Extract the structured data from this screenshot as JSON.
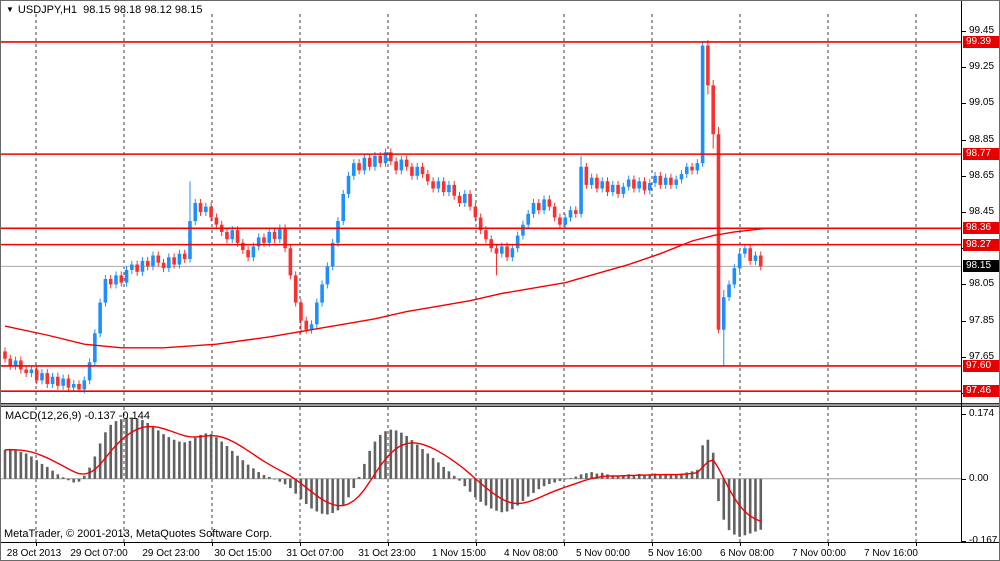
{
  "title": {
    "symbol_period": "USDJPY,H1",
    "ohlc_text": "98.15 98.18 98.12 98.15",
    "collapse_icon": "▼"
  },
  "macd_panel": {
    "label": "MACD(12,26,9)",
    "main_value": "-0.137",
    "signal_value": "-0.144"
  },
  "footer": {
    "copyright": "MetaTrader, © 2001-2013, MetaQuotes Software Corp."
  },
  "colors": {
    "bull": "#1E8FFF",
    "bear": "#FA3030",
    "sr_line": "#F40000",
    "ma_line": "#F40000",
    "hist": "#616161",
    "signal": "#F40000",
    "grid": "#3F3F3F",
    "current_line": "#ABABAB",
    "badge_red": "#E60000",
    "badge_black": "#000000",
    "zero_line": "#9a9a9a"
  },
  "chart_data": {
    "type": "candlestick",
    "symbol": "USDJPY",
    "timeframe": "H1",
    "current_bar": {
      "open": 98.15,
      "high": 98.18,
      "low": 98.12,
      "close": 98.15
    },
    "y_axis": {
      "max": 99.616,
      "min": 97.395,
      "ticks": [
        99.45,
        99.25,
        99.05,
        98.85,
        98.65,
        98.45,
        98.25,
        98.05,
        97.85,
        97.65,
        97.45
      ]
    },
    "macd_axis": {
      "max": 0.193,
      "min": -0.17,
      "ticks": [
        {
          "v": 0.174,
          "label": "0.174"
        },
        {
          "v": 0.0,
          "label": "0.00"
        },
        {
          "v": -0.167,
          "label": "-0.167"
        }
      ]
    },
    "x_labels": [
      "28 Oct 2013",
      "29 Oct 07:00",
      "29 Oct 23:00",
      "30 Oct 15:00",
      "31 Oct 07:00",
      "31 Oct 23:00",
      "1 Nov 15:00",
      "4 Nov 08:00",
      "5 Nov 00:00",
      "5 Nov 16:00",
      "6 Nov 08:00",
      "7 Nov 00:00",
      "7 Nov 16:00"
    ],
    "bars_per_gridline": 16,
    "hlines": [
      99.39,
      98.77,
      98.36,
      98.27,
      97.6,
      97.46
    ],
    "current_price": 98.15,
    "first_open": 97.68,
    "wick": 0.022,
    "closes": [
      97.64,
      97.6,
      97.63,
      97.58,
      97.56,
      97.58,
      97.52,
      97.56,
      97.5,
      97.54,
      97.49,
      97.53,
      97.48,
      97.5,
      97.47,
      97.52,
      97.62,
      97.78,
      97.95,
      98.08,
      98.05,
      98.1,
      98.06,
      98.13,
      98.16,
      98.12,
      98.18,
      98.15,
      98.21,
      98.17,
      98.14,
      98.2,
      98.16,
      98.22,
      98.19,
      98.4,
      98.5,
      98.45,
      98.48,
      98.42,
      98.38,
      98.34,
      98.3,
      98.35,
      98.28,
      98.24,
      98.2,
      98.26,
      98.31,
      98.28,
      98.34,
      98.3,
      98.36,
      98.25,
      98.1,
      97.95,
      97.85,
      97.8,
      97.83,
      97.95,
      98.05,
      98.15,
      98.28,
      98.4,
      98.55,
      98.65,
      98.72,
      98.68,
      98.75,
      98.7,
      98.76,
      98.72,
      98.78,
      98.73,
      98.68,
      98.74,
      98.7,
      98.65,
      98.7,
      98.66,
      98.62,
      98.58,
      98.62,
      98.56,
      98.6,
      98.54,
      98.5,
      98.55,
      98.48,
      98.42,
      98.35,
      98.3,
      98.25,
      98.22,
      98.26,
      98.2,
      98.25,
      98.32,
      98.38,
      98.44,
      98.5,
      98.46,
      98.52,
      98.48,
      98.42,
      98.38,
      98.42,
      98.46,
      98.44,
      98.7,
      98.6,
      98.64,
      98.58,
      98.62,
      98.56,
      98.6,
      98.55,
      98.59,
      98.63,
      98.58,
      98.62,
      98.57,
      98.61,
      98.65,
      98.6,
      98.64,
      98.6,
      98.63,
      98.66,
      98.7,
      98.68,
      98.72,
      99.37,
      99.15,
      98.88,
      97.8,
      97.98,
      98.05,
      98.14,
      98.22,
      98.25,
      98.18,
      98.21,
      98.15
    ],
    "overrides": {
      "14": [
        97.5,
        97.52,
        97.46,
        97.47
      ],
      "35": [
        98.19,
        98.62,
        98.17,
        98.4
      ],
      "56": [
        97.95,
        97.97,
        97.78,
        97.85
      ],
      "93": [
        98.25,
        98.27,
        98.1,
        98.22
      ],
      "109": [
        98.44,
        98.76,
        98.42,
        98.7
      ],
      "132": [
        98.72,
        99.39,
        98.7,
        99.37
      ],
      "133": [
        99.37,
        99.4,
        99.1,
        99.15
      ],
      "134": [
        99.15,
        99.18,
        98.8,
        98.88
      ],
      "135": [
        98.88,
        98.92,
        97.78,
        97.8
      ],
      "136": [
        97.8,
        98.02,
        97.6,
        97.98
      ]
    },
    "ma_points": [
      [
        0,
        97.82
      ],
      [
        8,
        97.77
      ],
      [
        15,
        97.72
      ],
      [
        22,
        97.7
      ],
      [
        30,
        97.7
      ],
      [
        40,
        97.72
      ],
      [
        50,
        97.76
      ],
      [
        58,
        97.8
      ],
      [
        64,
        97.83
      ],
      [
        70,
        97.86
      ],
      [
        76,
        97.9
      ],
      [
        82,
        97.93
      ],
      [
        88,
        97.96
      ],
      [
        94,
        98.0
      ],
      [
        100,
        98.03
      ],
      [
        106,
        98.06
      ],
      [
        112,
        98.11
      ],
      [
        118,
        98.16
      ],
      [
        124,
        98.22
      ],
      [
        130,
        98.29
      ],
      [
        134,
        98.32
      ],
      [
        138,
        98.34
      ],
      [
        141,
        98.35
      ],
      [
        144,
        98.36
      ]
    ],
    "macd_hist": [
      0.078,
      0.08,
      0.076,
      0.072,
      0.068,
      0.06,
      0.05,
      0.04,
      0.032,
      0.022,
      0.012,
      0.004,
      -0.004,
      -0.01,
      -0.008,
      0.008,
      0.03,
      0.06,
      0.095,
      0.125,
      0.145,
      0.155,
      0.16,
      0.163,
      0.165,
      0.162,
      0.158,
      0.15,
      0.14,
      0.13,
      0.12,
      0.112,
      0.105,
      0.1,
      0.098,
      0.102,
      0.11,
      0.118,
      0.122,
      0.12,
      0.112,
      0.1,
      0.088,
      0.075,
      0.062,
      0.05,
      0.038,
      0.028,
      0.018,
      0.01,
      0.005,
      -0.002,
      -0.008,
      -0.015,
      -0.025,
      -0.04,
      -0.055,
      -0.068,
      -0.08,
      -0.088,
      -0.094,
      -0.096,
      -0.092,
      -0.085,
      -0.07,
      -0.05,
      -0.025,
      0.005,
      0.04,
      0.075,
      0.1,
      0.118,
      0.128,
      0.132,
      0.13,
      0.124,
      0.115,
      0.104,
      0.092,
      0.08,
      0.068,
      0.056,
      0.044,
      0.032,
      0.02,
      0.008,
      -0.005,
      -0.02,
      -0.035,
      -0.05,
      -0.062,
      -0.072,
      -0.08,
      -0.086,
      -0.09,
      -0.088,
      -0.082,
      -0.072,
      -0.06,
      -0.048,
      -0.038,
      -0.028,
      -0.02,
      -0.014,
      -0.01,
      -0.006,
      -0.002,
      0.002,
      0.006,
      0.012,
      0.015,
      0.018,
      0.014,
      0.016,
      0.012,
      0.009,
      0.007,
      0.01,
      0.012,
      0.01,
      0.013,
      0.01,
      0.012,
      0.014,
      0.011,
      0.013,
      0.01,
      0.012,
      0.014,
      0.017,
      0.02,
      0.024,
      0.09,
      0.105,
      0.07,
      -0.06,
      -0.11,
      -0.138,
      -0.15,
      -0.156,
      -0.152,
      -0.147,
      -0.142,
      -0.137
    ],
    "macd_signal_period": 9
  }
}
